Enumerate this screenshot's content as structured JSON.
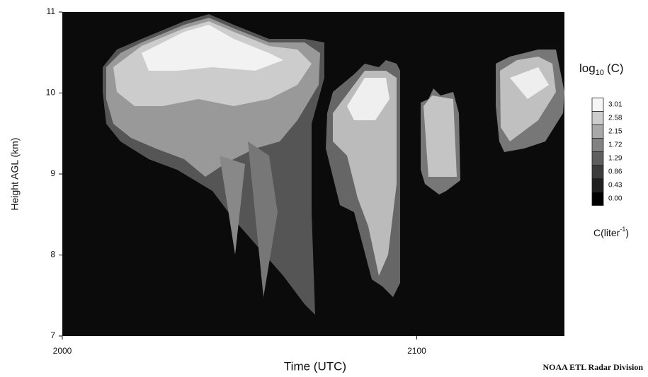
{
  "chart_data": {
    "type": "heatmap",
    "x_label": "Time (UTC)",
    "y_label": "Height AGL (km)",
    "xlim": [
      0,
      85
    ],
    "xticks": [
      {
        "value": 0,
        "label": "2000"
      },
      {
        "value": 60,
        "label": "2100"
      }
    ],
    "ylim": [
      7,
      11
    ],
    "yticks": [
      7,
      8,
      9,
      10,
      11
    ],
    "colorbar": {
      "title": {
        "text": "log",
        "subscript": "10",
        "suffix": "(C)"
      },
      "units": {
        "text": "C(liter",
        "superscript": "-1",
        "suffix": ")"
      },
      "levels": [
        {
          "value": 0,
          "label": "0.00"
        },
        0.43,
        0.86,
        1.29,
        1.72,
        2.15,
        2.58,
        3.01
      ],
      "colors": [
        "#000000",
        "#1e1e1e",
        "#3c3c3c",
        "#5e5e5e",
        "#828282",
        "#a8a8a8",
        "#cdcdcd",
        "#f6f6f6"
      ]
    },
    "credit": "NOAA ETL Radar Division"
  }
}
